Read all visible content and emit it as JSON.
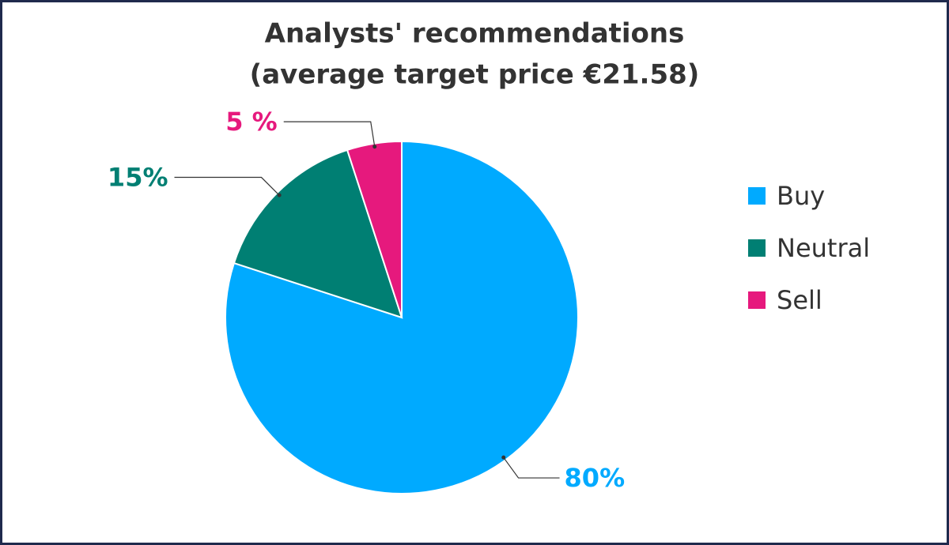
{
  "chart_data": {
    "type": "pie",
    "title": "Analysts' recommendations",
    "subtitle": "(average target price €21.58)",
    "categories": [
      "Buy",
      "Neutral",
      "Sell"
    ],
    "values": [
      80,
      15,
      5
    ],
    "value_labels": [
      "80%",
      "15%",
      "5 %"
    ],
    "colors": [
      "#00aaff",
      "#007f73",
      "#e6197d"
    ],
    "legend": "right"
  }
}
